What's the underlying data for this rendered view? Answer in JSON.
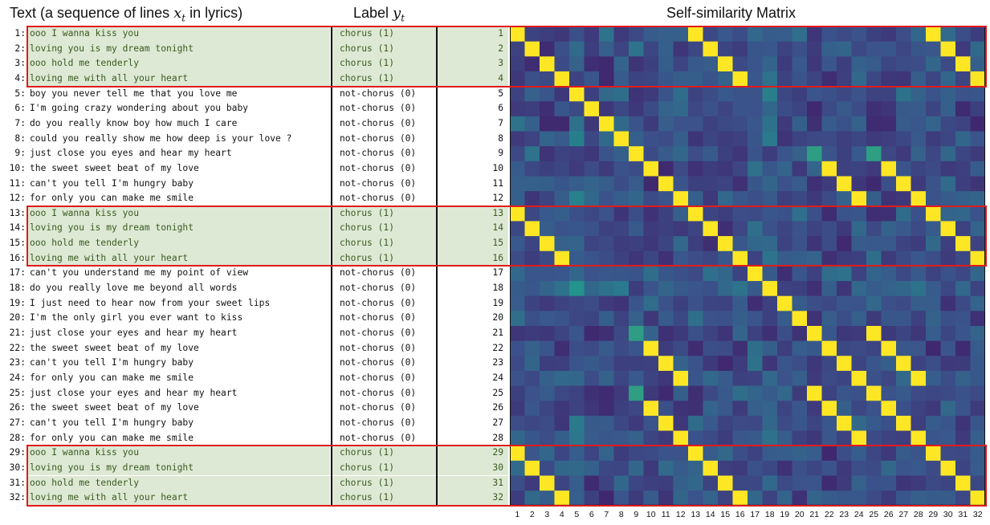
{
  "headers": {
    "text_prefix": "Text (a sequence of lines ",
    "text_var": "x",
    "text_sub": "t",
    "text_suffix": " in lyrics)",
    "label_prefix": "Label ",
    "label_var": "y",
    "label_sub": "t",
    "matrix_title": "Self-similarity Matrix"
  },
  "lines": [
    {
      "num": "1:",
      "text": "ooo I wanna kiss you",
      "label": "chorus (1)",
      "chorus": true
    },
    {
      "num": "2:",
      "text": "loving you is my dream tonight",
      "label": "chorus (1)",
      "chorus": true
    },
    {
      "num": "3:",
      "text": "ooo hold me tenderly",
      "label": "chorus (1)",
      "chorus": true
    },
    {
      "num": "4:",
      "text": "loving me with all your heart",
      "label": "chorus (1)",
      "chorus": true
    },
    {
      "num": "5:",
      "text": "boy you never tell me that you love me",
      "label": "not-chorus (0)",
      "chorus": false
    },
    {
      "num": "6:",
      "text": "I'm going crazy wondering about you baby",
      "label": "not-chorus (0)",
      "chorus": false
    },
    {
      "num": "7:",
      "text": "do you really know boy how much I care",
      "label": "not-chorus (0)",
      "chorus": false
    },
    {
      "num": "8:",
      "text": "could you really show me how deep is your love ?",
      "label": "not-chorus (0)",
      "chorus": false
    },
    {
      "num": "9:",
      "text": "just close you eyes and hear my heart",
      "label": "not-chorus (0)",
      "chorus": false
    },
    {
      "num": "10:",
      "text": "the sweet sweet beat of my love",
      "label": "not-chorus (0)",
      "chorus": false
    },
    {
      "num": "11:",
      "text": "can't you tell I'm hungry baby",
      "label": "not-chorus (0)",
      "chorus": false
    },
    {
      "num": "12:",
      "text": "for only you can make me smile",
      "label": "not-chorus (0)",
      "chorus": false
    },
    {
      "num": "13:",
      "text": "ooo I wanna kiss you",
      "label": "chorus (1)",
      "chorus": true
    },
    {
      "num": "14:",
      "text": "loving you is my dream tonight",
      "label": "chorus (1)",
      "chorus": true
    },
    {
      "num": "15:",
      "text": "ooo hold me tenderly",
      "label": "chorus (1)",
      "chorus": true
    },
    {
      "num": "16:",
      "text": "loving me with all your heart",
      "label": "chorus (1)",
      "chorus": true
    },
    {
      "num": "17:",
      "text": "can't you understand me my point of view",
      "label": "not-chorus (0)",
      "chorus": false
    },
    {
      "num": "18:",
      "text": "do you really love me beyond all words",
      "label": "not-chorus (0)",
      "chorus": false
    },
    {
      "num": "19:",
      "text": "I just need to hear now from your sweet lips",
      "label": "not-chorus (0)",
      "chorus": false
    },
    {
      "num": "20:",
      "text": "I'm the only girl you ever want to kiss",
      "label": "not-chorus (0)",
      "chorus": false
    },
    {
      "num": "21:",
      "text": "just close your eyes and hear my heart",
      "label": "not-chorus (0)",
      "chorus": false
    },
    {
      "num": "22:",
      "text": "the sweet sweet beat of my love",
      "label": "not-chorus (0)",
      "chorus": false
    },
    {
      "num": "23:",
      "text": "can't you tell I'm hungry baby",
      "label": "not-chorus (0)",
      "chorus": false
    },
    {
      "num": "24:",
      "text": "for only you can make me smile",
      "label": "not-chorus (0)",
      "chorus": false
    },
    {
      "num": "25:",
      "text": "just close your eyes and hear my heart",
      "label": "not-chorus (0)",
      "chorus": false
    },
    {
      "num": "26:",
      "text": "the sweet sweet beat of my love",
      "label": "not-chorus (0)",
      "chorus": false
    },
    {
      "num": "27:",
      "text": "can't you tell I'm hungry baby",
      "label": "not-chorus (0)",
      "chorus": false
    },
    {
      "num": "28:",
      "text": "for only you can make me smile",
      "label": "not-chorus (0)",
      "chorus": false
    },
    {
      "num": "29:",
      "text": "ooo I wanna kiss you",
      "label": "chorus (1)",
      "chorus": true
    },
    {
      "num": "30:",
      "text": "loving you is my dream tonight",
      "label": "chorus (1)",
      "chorus": true
    },
    {
      "num": "31:",
      "text": "ooo hold me tenderly",
      "label": "chorus (1)",
      "chorus": true
    },
    {
      "num": "32:",
      "text": "loving me with all your heart",
      "label": "chorus (1)",
      "chorus": true
    }
  ],
  "row_indices": [
    "1",
    "2",
    "3",
    "4",
    "5",
    "6",
    "7",
    "8",
    "9",
    "10",
    "11",
    "12",
    "13",
    "14",
    "15",
    "16",
    "17",
    "18",
    "19",
    "20",
    "21",
    "22",
    "23",
    "24",
    "25",
    "26",
    "27",
    "28",
    "29",
    "30",
    "31",
    "32"
  ],
  "x_ticks": [
    "1",
    "2",
    "3",
    "4",
    "5",
    "6",
    "7",
    "8",
    "9",
    "10",
    "11",
    "12",
    "13",
    "14",
    "15",
    "16",
    "17",
    "18",
    "19",
    "20",
    "21",
    "22",
    "23",
    "24",
    "25",
    "26",
    "27",
    "28",
    "29",
    "30",
    "31",
    "32"
  ],
  "chorus_blocks": [
    [
      1,
      4
    ],
    [
      13,
      16
    ],
    [
      29,
      32
    ]
  ],
  "colors": {
    "chorus_bg": "#dde9d4",
    "chorus_text": "#3a5a20",
    "highlight_border": "#e01b1b",
    "colormap": [
      "#440154",
      "#3b528b",
      "#21918c",
      "#5ec962",
      "#fde725"
    ]
  }
}
